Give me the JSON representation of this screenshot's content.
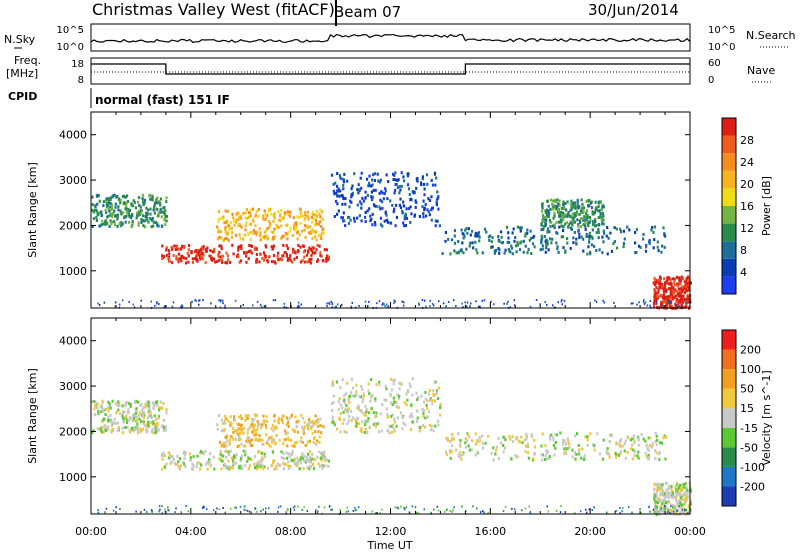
{
  "header": {
    "radar": "Christmas Valley West (fitACF)",
    "beam": "Beam 07",
    "date": "30/Jun/2014"
  },
  "panels": {
    "nsky": {
      "left_label": "N.Sky",
      "right_label": "N.Search",
      "left_ticks": [
        "10^5",
        "10^0"
      ],
      "right_ticks": [
        "10^5",
        "10^0"
      ]
    },
    "freq": {
      "left_label_1": "Freq.",
      "left_label_2": "[MHz]",
      "right_label": "Nave",
      "left_ticks": [
        "18",
        "8"
      ],
      "right_ticks": [
        "60",
        "0"
      ]
    },
    "cpid": {
      "label": "CPID",
      "mode": "normal (fast) 151 IF"
    }
  },
  "chart_data": [
    {
      "name": "power",
      "type": "heatmap",
      "xlabel": "Time UT",
      "ylabel": "Slant Range [km]",
      "x_ticks": [
        "00:00",
        "04:00",
        "08:00",
        "12:00",
        "16:00",
        "20:00",
        "00:00"
      ],
      "x_range_hours": [
        0,
        24
      ],
      "y_ticks": [
        1000,
        2000,
        3000,
        4000
      ],
      "ylim": [
        180,
        4500
      ],
      "colorbar": {
        "label": "Power [dB]",
        "ticks": [
          4,
          8,
          12,
          16,
          20,
          24,
          28
        ],
        "colors": [
          "#1e3cf0",
          "#0a3cb4",
          "#1e6e9a",
          "#2a8c4a",
          "#74b444",
          "#f0dc14",
          "#f8b41e",
          "#f58c1e",
          "#f05a1e",
          "#dc1e14"
        ]
      },
      "bands": [
        {
          "t": [
            0.0,
            3.0
          ],
          "r": [
            2000,
            2700
          ],
          "level": 3
        },
        {
          "t": [
            2.8,
            9.5
          ],
          "r": [
            1200,
            1600
          ],
          "level": 9
        },
        {
          "t": [
            5.0,
            9.3
          ],
          "r": [
            1700,
            2400
          ],
          "level": 6
        },
        {
          "t": [
            9.6,
            14.0
          ],
          "r": [
            2000,
            3200
          ],
          "level": 1
        },
        {
          "t": [
            14.0,
            23.0
          ],
          "r": [
            1400,
            2000
          ],
          "level": 2
        },
        {
          "t": [
            18.0,
            20.5
          ],
          "r": [
            2000,
            2600
          ],
          "level": 3
        },
        {
          "t": [
            22.5,
            24.0
          ],
          "r": [
            200,
            900
          ],
          "level": 9
        }
      ]
    },
    {
      "name": "velocity",
      "type": "heatmap",
      "xlabel": "Time UT",
      "ylabel": "Slant Range [km]",
      "x_ticks": [
        "00:00",
        "04:00",
        "08:00",
        "12:00",
        "16:00",
        "20:00",
        "00:00"
      ],
      "x_range_hours": [
        0,
        24
      ],
      "y_ticks": [
        1000,
        2000,
        3000,
        4000
      ],
      "ylim": [
        180,
        4500
      ],
      "colorbar": {
        "label": "Velocity [m s^-1]",
        "ticks": [
          200,
          100,
          50,
          15,
          -15,
          -50,
          -100,
          -200
        ],
        "colors": [
          "#1e3cb4",
          "#1e78c8",
          "#2a8c4a",
          "#5cc832",
          "#c8c8c8",
          "#f0c83c",
          "#f0a01e",
          "#f06e1e",
          "#f01e1e"
        ]
      },
      "bands": [
        {
          "t": [
            0.0,
            3.0
          ],
          "r": [
            2000,
            2700
          ],
          "level": 4
        },
        {
          "t": [
            2.8,
            9.5
          ],
          "r": [
            1200,
            1600
          ],
          "level": 4
        },
        {
          "t": [
            5.0,
            9.3
          ],
          "r": [
            1700,
            2400
          ],
          "level": 5
        },
        {
          "t": [
            9.6,
            14.0
          ],
          "r": [
            2000,
            3200
          ],
          "level": 4
        },
        {
          "t": [
            14.0,
            23.0
          ],
          "r": [
            1400,
            2000
          ],
          "level": 4
        },
        {
          "t": [
            22.5,
            24.0
          ],
          "r": [
            200,
            900
          ],
          "level": 4
        }
      ]
    }
  ]
}
